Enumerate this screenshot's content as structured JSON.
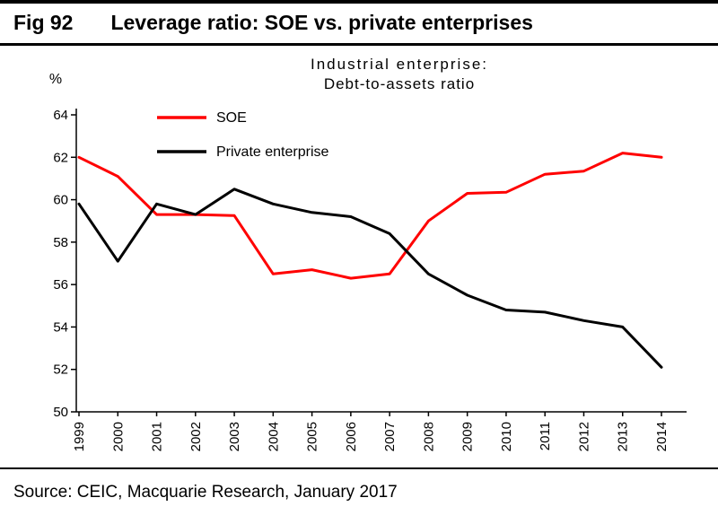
{
  "figure": {
    "label": "Fig 92",
    "title": "Leverage ratio: SOE vs. private enterprises",
    "source": "Source: CEIC, Macquarie Research, January 2017"
  },
  "chart_data": {
    "type": "line",
    "title_line1": "Industrial enterprise:",
    "title_line2": "Debt-to-assets ratio",
    "ylabel": "%",
    "ylim": [
      50,
      64
    ],
    "yticks": [
      50,
      52,
      54,
      56,
      58,
      60,
      62,
      64
    ],
    "grid": false,
    "legend_position": "top-left",
    "categories": [
      "1999",
      "2000",
      "2001",
      "2002",
      "2003",
      "2004",
      "2005",
      "2006",
      "2007",
      "2008",
      "2009",
      "2010",
      "2011",
      "2012",
      "2013",
      "2014"
    ],
    "series": [
      {
        "name": "SOE",
        "color": "#ff0000",
        "values": [
          62.0,
          61.1,
          59.3,
          59.3,
          59.25,
          56.5,
          56.7,
          56.3,
          56.5,
          59.0,
          60.3,
          60.35,
          61.2,
          61.35,
          62.2,
          62.0
        ]
      },
      {
        "name": "Private enterprise",
        "color": "#000000",
        "values": [
          59.8,
          57.1,
          59.8,
          59.3,
          60.5,
          59.8,
          59.4,
          59.2,
          58.4,
          56.5,
          55.5,
          54.8,
          54.7,
          54.3,
          54.0,
          52.1
        ]
      }
    ]
  }
}
